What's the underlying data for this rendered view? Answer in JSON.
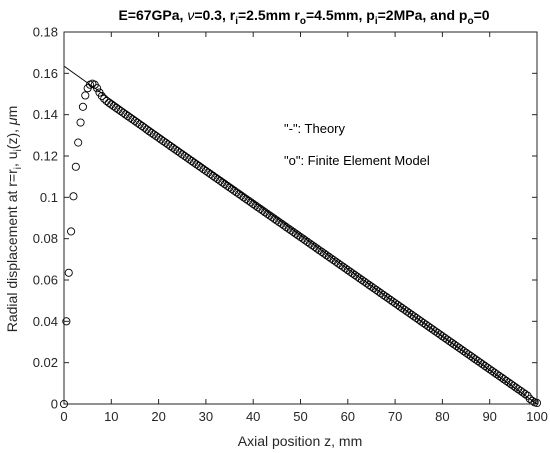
{
  "chart_data": {
    "type": "line",
    "title_parts": {
      "a": "E=67GPa, ",
      "nu": "ν",
      "b": "=0.3, r",
      "b_sub": "i",
      "c": "=2.5mm r",
      "c_sub": "o",
      "d": "=4.5mm, p",
      "d_sub": "i",
      "e": "=2MPa, and p",
      "e_sub": "o",
      "f": "=0"
    },
    "xlabel": "Axial position z, mm",
    "ylabel_parts": {
      "a": "Radial displacement at r=r",
      "a_sub": "i",
      "b": ", u",
      "b_sub": "i",
      "c": "(z), ",
      "mu": "μ",
      "d": "m"
    },
    "xlim": [
      0,
      100
    ],
    "ylim": [
      0,
      0.18
    ],
    "xticks": [
      "0",
      "10",
      "20",
      "30",
      "40",
      "50",
      "60",
      "70",
      "80",
      "90",
      "100"
    ],
    "yticks": [
      "0",
      "0.02",
      "0.04",
      "0.06",
      "0.08",
      "0.1",
      "0.12",
      "0.14",
      "0.16",
      "0.18"
    ],
    "grid": false,
    "annotations": {
      "theory": "\"-\": Theory",
      "fem": "\"o\": Finite Element Model"
    },
    "series": [
      {
        "name": "Theory",
        "style": "line",
        "color": "#000000",
        "x": [
          0,
          100
        ],
        "y": [
          0.1635,
          0.0
        ]
      },
      {
        "name": "Finite Element Model",
        "style": "markers",
        "color": "#000000",
        "x": [
          0,
          0.5,
          1,
          1.5,
          2,
          2.5,
          3,
          3.5,
          4,
          4.5,
          5,
          5.5,
          6,
          6.5,
          7,
          7.5,
          8,
          8.5,
          9,
          9.5,
          10,
          10.5,
          11,
          11.5,
          12,
          12.5,
          13,
          13.5,
          14,
          14.5,
          15,
          15.5,
          16,
          16.5,
          17,
          17.5,
          18,
          18.5,
          19,
          19.5,
          20,
          20.5,
          21,
          21.5,
          22,
          22.5,
          23,
          23.5,
          24,
          24.5,
          25,
          25.5,
          26,
          26.5,
          27,
          27.5,
          28,
          28.5,
          29,
          29.5,
          30,
          30.5,
          31,
          31.5,
          32,
          32.5,
          33,
          33.5,
          34,
          34.5,
          35,
          35.5,
          36,
          36.5,
          37,
          37.5,
          38,
          38.5,
          39,
          39.5,
          40,
          40.5,
          41,
          41.5,
          42,
          42.5,
          43,
          43.5,
          44,
          44.5,
          45,
          45.5,
          46,
          46.5,
          47,
          47.5,
          48,
          48.5,
          49,
          49.5,
          50,
          50.5,
          51,
          51.5,
          52,
          52.5,
          53,
          53.5,
          54,
          54.5,
          55,
          55.5,
          56,
          56.5,
          57,
          57.5,
          58,
          58.5,
          59,
          59.5,
          60,
          60.5,
          61,
          61.5,
          62,
          62.5,
          63,
          63.5,
          64,
          64.5,
          65,
          65.5,
          66,
          66.5,
          67,
          67.5,
          68,
          68.5,
          69,
          69.5,
          70,
          70.5,
          71,
          71.5,
          72,
          72.5,
          73,
          73.5,
          74,
          74.5,
          75,
          75.5,
          76,
          76.5,
          77,
          77.5,
          78,
          78.5,
          79,
          79.5,
          80,
          80.5,
          81,
          81.5,
          82,
          82.5,
          83,
          83.5,
          84,
          84.5,
          85,
          85.5,
          86,
          86.5,
          87,
          87.5,
          88,
          88.5,
          89,
          89.5,
          90,
          90.5,
          91,
          91.5,
          92,
          92.5,
          93,
          93.5,
          94,
          94.5,
          95,
          95.5,
          96,
          96.5,
          97,
          97.5,
          98,
          98.5,
          99,
          99.5,
          100
        ],
        "y": [
          0,
          0.04,
          0.0635,
          0.0835,
          0.1005,
          0.1148,
          0.1265,
          0.1362,
          0.1438,
          0.1493,
          0.1528,
          0.1545,
          0.155,
          0.1545,
          0.1528,
          0.1507,
          0.149,
          0.1477,
          0.1466,
          0.1457,
          0.1449,
          0.1441,
          0.1433,
          0.1425,
          0.1417,
          0.1409,
          0.1401,
          0.1393,
          0.1385,
          0.1377,
          0.1369,
          0.1361,
          0.1353,
          0.1345,
          0.1337,
          0.1328,
          0.132,
          0.1312,
          0.1304,
          0.1296,
          0.1288,
          0.128,
          0.1272,
          0.1264,
          0.1256,
          0.1248,
          0.124,
          0.1232,
          0.1224,
          0.1216,
          0.1208,
          0.12,
          0.1192,
          0.1184,
          0.1176,
          0.1168,
          0.116,
          0.1152,
          0.1144,
          0.1136,
          0.1128,
          0.112,
          0.1112,
          0.1104,
          0.1096,
          0.1088,
          0.108,
          0.1072,
          0.1064,
          0.1056,
          0.1048,
          0.104,
          0.1032,
          0.1024,
          0.1016,
          0.1008,
          0.1,
          0.0992,
          0.0984,
          0.0976,
          0.0968,
          0.096,
          0.0952,
          0.0944,
          0.0936,
          0.0928,
          0.092,
          0.0912,
          0.0904,
          0.0896,
          0.0888,
          0.088,
          0.0872,
          0.0864,
          0.0856,
          0.0848,
          0.084,
          0.0832,
          0.0824,
          0.0816,
          0.0808,
          0.08,
          0.0792,
          0.0784,
          0.0776,
          0.0768,
          0.076,
          0.0752,
          0.0744,
          0.0736,
          0.0728,
          0.072,
          0.0712,
          0.0704,
          0.0696,
          0.0688,
          0.068,
          0.0672,
          0.0664,
          0.0656,
          0.0648,
          0.064,
          0.0632,
          0.0624,
          0.0616,
          0.0608,
          0.06,
          0.0592,
          0.0584,
          0.0576,
          0.0568,
          0.056,
          0.0552,
          0.0544,
          0.0536,
          0.0528,
          0.052,
          0.0512,
          0.0504,
          0.0496,
          0.0488,
          0.048,
          0.0472,
          0.0464,
          0.0456,
          0.0448,
          0.044,
          0.0432,
          0.0424,
          0.0416,
          0.0408,
          0.04,
          0.0392,
          0.0384,
          0.0376,
          0.0368,
          0.036,
          0.0352,
          0.0344,
          0.0336,
          0.0328,
          0.032,
          0.0312,
          0.0304,
          0.0296,
          0.0288,
          0.028,
          0.0272,
          0.0264,
          0.0256,
          0.0248,
          0.024,
          0.0232,
          0.0224,
          0.0216,
          0.0208,
          0.02,
          0.0192,
          0.0184,
          0.0176,
          0.0168,
          0.016,
          0.0152,
          0.0144,
          0.0136,
          0.0128,
          0.012,
          0.0112,
          0.0104,
          0.0096,
          0.0088,
          0.008,
          0.0072,
          0.0064,
          0.0056,
          0.0048,
          0.004,
          0.0025,
          0.0015,
          0.0008,
          0.0005
        ]
      }
    ]
  }
}
